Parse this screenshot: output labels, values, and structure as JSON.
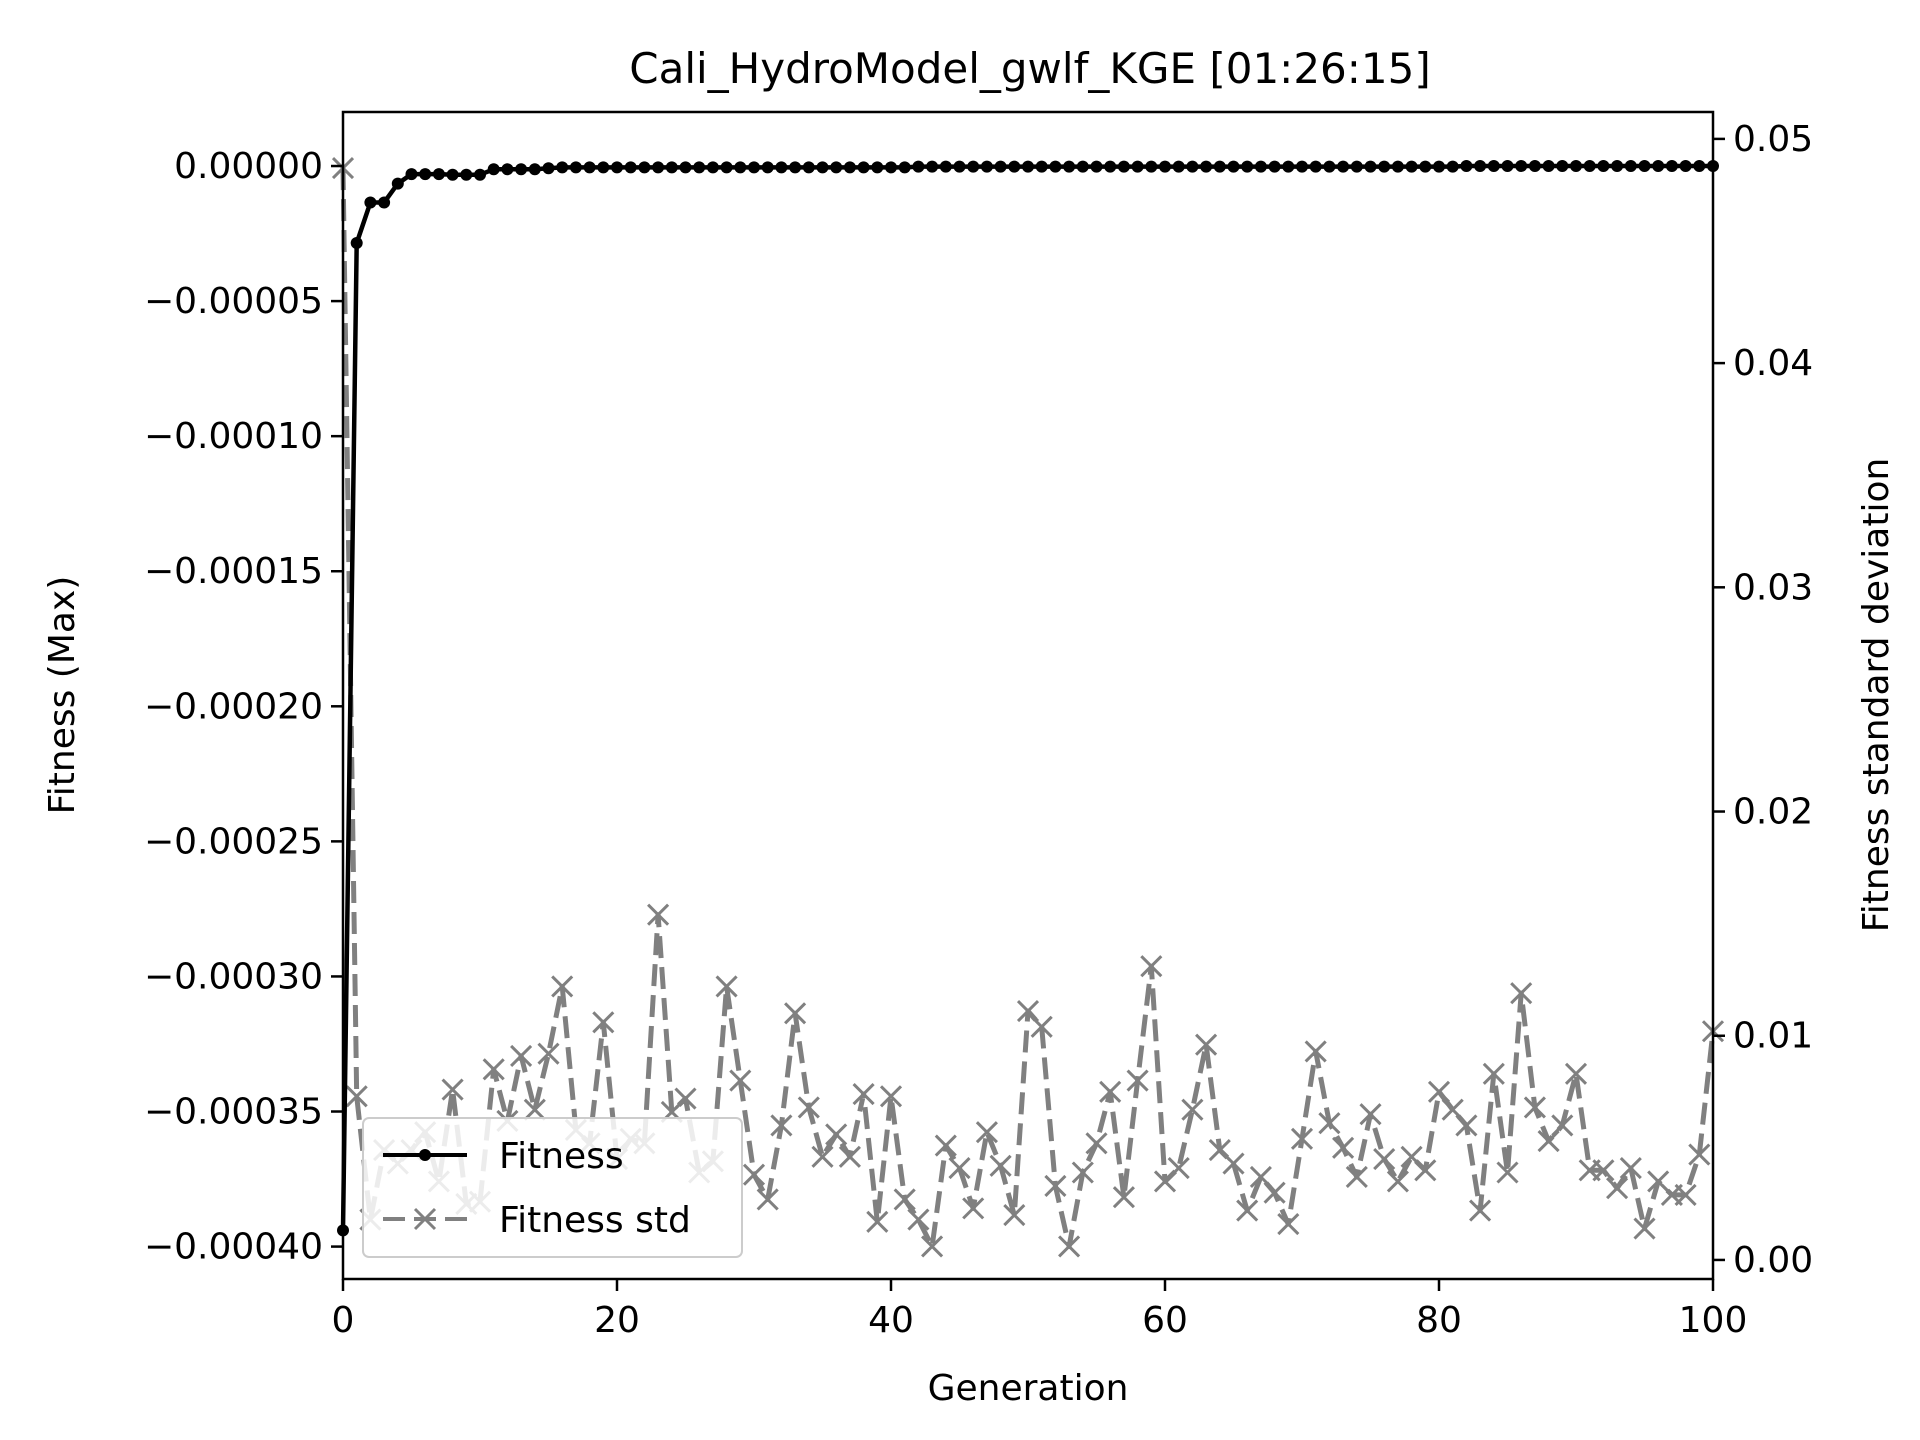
{
  "chart_data": {
    "type": "line",
    "title": "Cali_HydroModel_gwlf_KGE  [01:26:15]",
    "xlabel": "Generation",
    "ylabel": "Fitness (Max)",
    "ylabel_right": "Fitness standard deviation",
    "xlim": [
      0,
      100
    ],
    "ylim": [
      -0.000412,
      2e-05
    ],
    "ylim_right": [
      -0.00085,
      0.0512
    ],
    "x_ticks": [
      0,
      20,
      40,
      60,
      80,
      100
    ],
    "x_tick_labels": [
      "0",
      "20",
      "40",
      "60",
      "80",
      "100"
    ],
    "y_ticks": [
      0,
      -5e-05,
      -0.0001,
      -0.00015,
      -0.0002,
      -0.00025,
      -0.0003,
      -0.00035,
      -0.0004
    ],
    "y_tick_labels": [
      "0.00000",
      "−0.00005",
      "−0.00010",
      "−0.00015",
      "−0.00020",
      "−0.00025",
      "−0.00030",
      "−0.00035",
      "−0.00040"
    ],
    "y_right_ticks": [
      0,
      0.01,
      0.02,
      0.03,
      0.04,
      0.05
    ],
    "y_right_tick_labels": [
      "0.00",
      "0.01",
      "0.02",
      "0.03",
      "0.04",
      "0.05"
    ],
    "legend_location": "lower-left",
    "series": [
      {
        "name": "Fitness",
        "axis": "left",
        "color": "#000000",
        "style": "solid",
        "marker": "dot",
        "x": [
          0,
          1,
          2,
          3,
          4,
          5,
          6,
          7,
          8,
          9,
          10,
          11,
          12,
          13,
          14,
          15,
          16,
          17,
          18,
          19,
          20,
          21,
          22,
          23,
          24,
          25,
          26,
          27,
          28,
          29,
          30,
          31,
          32,
          33,
          34,
          35,
          36,
          37,
          38,
          39,
          40,
          41,
          42,
          43,
          44,
          45,
          46,
          47,
          48,
          49,
          50,
          51,
          52,
          53,
          54,
          55,
          56,
          57,
          58,
          59,
          60,
          61,
          62,
          63,
          64,
          65,
          66,
          67,
          68,
          69,
          70,
          71,
          72,
          73,
          74,
          75,
          76,
          77,
          78,
          79,
          80,
          81,
          82,
          83,
          84,
          85,
          86,
          87,
          88,
          89,
          90,
          91,
          92,
          93,
          94,
          95,
          96,
          97,
          98,
          99,
          100
        ],
        "values": [
          -0.000394,
          -2.85e-05,
          -1.35e-05,
          -1.35e-05,
          -6.5e-06,
          -3e-06,
          -3e-06,
          -3e-06,
          -3.2e-06,
          -3.2e-06,
          -3.2e-06,
          -1.2e-06,
          -1.2e-06,
          -1.2e-06,
          -1.2e-06,
          -8e-07,
          -5e-07,
          -5e-07,
          -5e-07,
          -5e-07,
          -5e-07,
          -5e-07,
          -5e-07,
          -5e-07,
          -5e-07,
          -5e-07,
          -5e-07,
          -5e-07,
          -5e-07,
          -5e-07,
          -5e-07,
          -5e-07,
          -5e-07,
          -5e-07,
          -5e-07,
          -5e-07,
          -5e-07,
          -5e-07,
          -5e-07,
          -5e-07,
          -5e-07,
          -5e-07,
          -2e-07,
          -2e-07,
          -2e-07,
          -2e-07,
          -2e-07,
          -2e-07,
          -2e-07,
          -2e-07,
          -2e-07,
          -2e-07,
          -2e-07,
          -2e-07,
          -2e-07,
          -2e-07,
          -2e-07,
          -2e-07,
          -2e-07,
          -2e-07,
          -2e-07,
          -2e-07,
          -2e-07,
          -2e-07,
          -2e-07,
          -2e-07,
          -2e-07,
          -2e-07,
          -2e-07,
          -2e-07,
          -2e-07,
          -2e-07,
          -2e-07,
          -2e-07,
          -2e-07,
          -2e-07,
          -2e-07,
          -2e-07,
          -2e-07,
          -2e-07,
          -2e-07,
          -2e-07,
          0,
          0,
          0,
          0,
          0,
          0,
          0,
          0,
          0,
          0,
          0,
          0,
          0,
          0,
          0,
          0,
          0,
          0,
          0
        ]
      },
      {
        "name": "Fitness std",
        "axis": "right",
        "color": "#808080",
        "style": "dashed",
        "marker": "x",
        "x": [
          0,
          1,
          2,
          3,
          4,
          5,
          6,
          7,
          8,
          9,
          10,
          11,
          12,
          13,
          14,
          15,
          16,
          17,
          18,
          19,
          20,
          21,
          22,
          23,
          24,
          25,
          26,
          27,
          28,
          29,
          30,
          31,
          32,
          33,
          34,
          35,
          36,
          37,
          38,
          39,
          40,
          41,
          42,
          43,
          44,
          45,
          46,
          47,
          48,
          49,
          50,
          51,
          52,
          53,
          54,
          55,
          56,
          57,
          58,
          59,
          60,
          61,
          62,
          63,
          64,
          65,
          66,
          67,
          68,
          69,
          70,
          71,
          72,
          73,
          74,
          75,
          76,
          77,
          78,
          79,
          80,
          81,
          82,
          83,
          84,
          85,
          86,
          87,
          88,
          89,
          90,
          91,
          92,
          93,
          94,
          95,
          96,
          97,
          98,
          99,
          100
        ],
        "values": [
          0.0487,
          0.0073,
          0.0018,
          0.0049,
          0.0043,
          0.0049,
          0.0057,
          0.0035,
          0.0076,
          0.0025,
          0.0026,
          0.0085,
          0.0062,
          0.0091,
          0.0067,
          0.0092,
          0.0122,
          0.0058,
          0.0052,
          0.0106,
          0.0045,
          0.0054,
          0.0052,
          0.0154,
          0.0066,
          0.0072,
          0.0039,
          0.0044,
          0.0122,
          0.008,
          0.0038,
          0.0027,
          0.006,
          0.011,
          0.0068,
          0.0046,
          0.0056,
          0.0046,
          0.0074,
          0.0017,
          0.0073,
          0.0027,
          0.0018,
          0.0006,
          0.0051,
          0.0041,
          0.0023,
          0.0057,
          0.0042,
          0.002,
          0.0111,
          0.0104,
          0.0033,
          0.0006,
          0.0039,
          0.0052,
          0.0075,
          0.0028,
          0.008,
          0.0131,
          0.0035,
          0.0041,
          0.0067,
          0.0096,
          0.0049,
          0.0043,
          0.0022,
          0.0037,
          0.003,
          0.0016,
          0.0054,
          0.0093,
          0.0061,
          0.005,
          0.0037,
          0.0065,
          0.0045,
          0.0035,
          0.0046,
          0.004,
          0.0075,
          0.0067,
          0.006,
          0.0022,
          0.0083,
          0.0039,
          0.0119,
          0.0068,
          0.0053,
          0.006,
          0.0083,
          0.004,
          0.004,
          0.0032,
          0.0041,
          0.0014,
          0.0035,
          0.0029,
          0.0029,
          0.0047,
          0.0102
        ]
      }
    ]
  }
}
